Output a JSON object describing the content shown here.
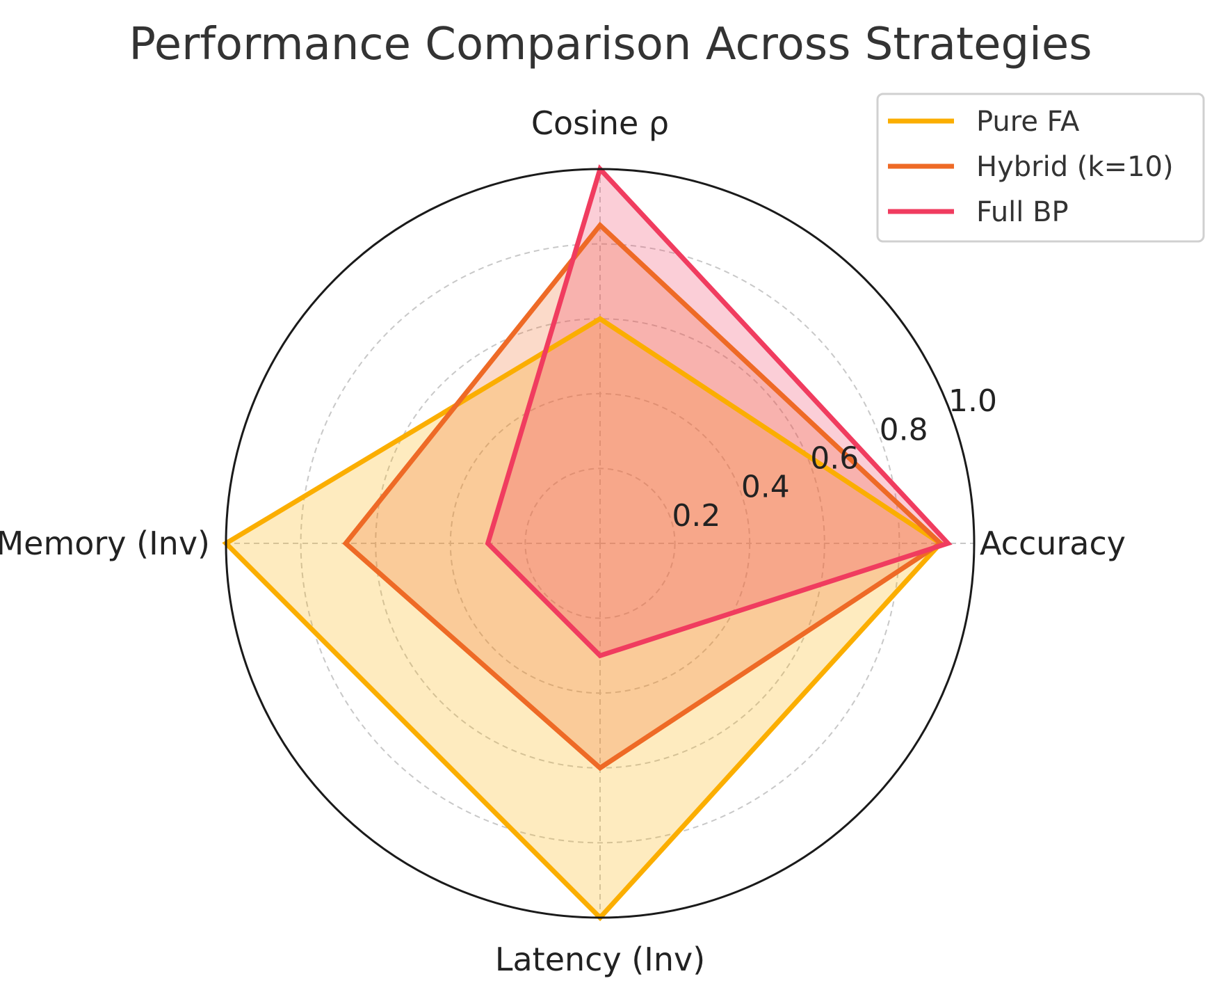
{
  "chart_data": {
    "type": "radar",
    "title": "Performance Comparison Across Strategies",
    "axes": [
      "Accuracy",
      "Cosine ρ",
      "GPU Memory (Inv)",
      "Latency (Inv)"
    ],
    "rlim": [
      0,
      1.0
    ],
    "r_ticks": [
      "0.2",
      "0.4",
      "0.6",
      "0.8",
      "1.0"
    ],
    "r_tick_values": [
      0.2,
      0.4,
      0.6,
      0.8,
      1.0
    ],
    "grid": true,
    "legend_position": "top-right",
    "series": [
      {
        "name": "Pure FA",
        "color": "#FBAE00",
        "fill_opacity": 0.25,
        "values": [
          0.91,
          0.6,
          1.0,
          1.0
        ]
      },
      {
        "name": "Hybrid (k=10)",
        "color": "#EE6A26",
        "fill_opacity": 0.25,
        "values": [
          0.91,
          0.85,
          0.68,
          0.6
        ]
      },
      {
        "name": "Full BP",
        "color": "#F03C5F",
        "fill_opacity": 0.25,
        "values": [
          0.93,
          1.0,
          0.3,
          0.3
        ]
      }
    ]
  }
}
